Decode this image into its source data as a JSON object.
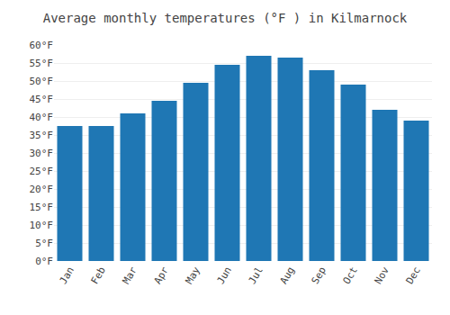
{
  "chart_data": {
    "type": "bar",
    "title": "Average monthly temperatures (°F ) in Kilmarnock",
    "categories": [
      "Jan",
      "Feb",
      "Mar",
      "Apr",
      "May",
      "Jun",
      "Jul",
      "Aug",
      "Sep",
      "Oct",
      "Nov",
      "Dec"
    ],
    "values": [
      37.5,
      37.5,
      41.0,
      44.5,
      49.5,
      54.5,
      57.0,
      56.5,
      53.0,
      49.0,
      42.0,
      39.0
    ],
    "ylim": [
      0,
      60
    ],
    "yticks": [
      {
        "value": 0,
        "label": "0°F"
      },
      {
        "value": 5,
        "label": "5°F"
      },
      {
        "value": 10,
        "label": "10°F"
      },
      {
        "value": 15,
        "label": "15°F"
      },
      {
        "value": 20,
        "label": "20°F"
      },
      {
        "value": 25,
        "label": "25°F"
      },
      {
        "value": 30,
        "label": "30°F"
      },
      {
        "value": 35,
        "label": "35°F"
      },
      {
        "value": 40,
        "label": "40°F"
      },
      {
        "value": 45,
        "label": "45°F"
      },
      {
        "value": 50,
        "label": "50°F"
      },
      {
        "value": 55,
        "label": "55°F"
      },
      {
        "value": 60,
        "label": "60°F"
      }
    ],
    "grid": true
  }
}
